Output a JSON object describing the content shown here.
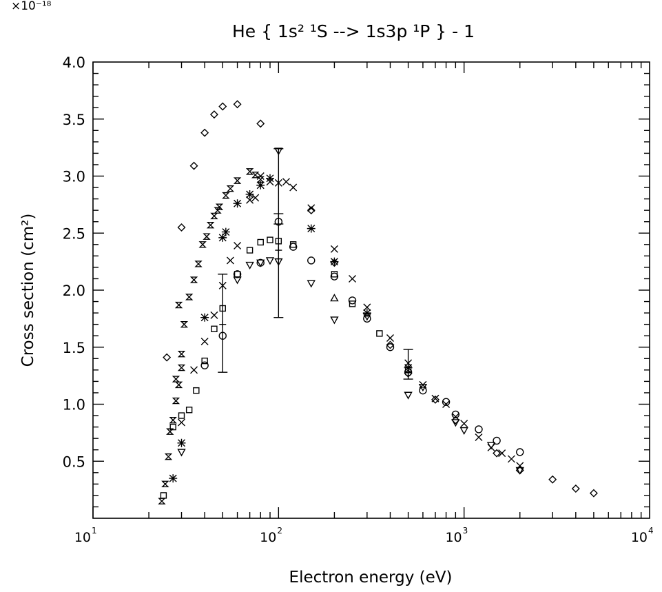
{
  "chart_data": {
    "type": "scatter",
    "title": "He { 1s² ¹S --> 1s3p ¹P } - 1",
    "scale_factor_label": "×10⁻¹⁸",
    "xlabel": "Electron energy (eV)",
    "ylabel": "Cross section (cm²)",
    "x_scale": "log",
    "xlim": [
      10,
      10000
    ],
    "ylim": [
      0,
      4.0
    ],
    "x_tick_labels": [
      {
        "value": 10,
        "base": "10",
        "exp": "1"
      },
      {
        "value": 100,
        "base": "10",
        "exp": "2"
      },
      {
        "value": 1000,
        "base": "10",
        "exp": "3"
      },
      {
        "value": 10000,
        "base": "10",
        "exp": "4"
      }
    ],
    "y_ticks": [
      0.5,
      1.0,
      1.5,
      2.0,
      2.5,
      3.0,
      3.5,
      4.0
    ],
    "y_tick_labels": [
      "0.5",
      "1.0",
      "1.5",
      "2.0",
      "2.5",
      "3.0",
      "3.5",
      "4.0"
    ],
    "grid": false,
    "legend": "none",
    "series": [
      {
        "marker": "diamond",
        "points": [
          [
            25,
            1.41
          ],
          [
            30,
            2.55
          ],
          [
            35,
            3.09
          ],
          [
            40,
            3.38
          ],
          [
            45,
            3.54
          ],
          [
            50,
            3.61
          ],
          [
            60,
            3.63
          ],
          [
            80,
            3.46
          ],
          [
            150,
            2.7
          ],
          [
            200,
            2.24
          ],
          [
            400,
            1.52
          ],
          [
            500,
            1.27
          ],
          [
            700,
            1.04
          ],
          [
            900,
            0.86
          ],
          [
            1500,
            0.57
          ],
          [
            2000,
            0.42
          ],
          [
            3000,
            0.34
          ],
          [
            4000,
            0.26
          ],
          [
            5000,
            0.22
          ]
        ]
      },
      {
        "marker": "x",
        "points": [
          [
            30,
            0.84
          ],
          [
            35,
            1.3
          ],
          [
            40,
            1.55
          ],
          [
            45,
            1.78
          ],
          [
            50,
            2.04
          ],
          [
            55,
            2.26
          ],
          [
            60,
            2.39
          ],
          [
            70,
            2.79
          ],
          [
            75,
            2.81
          ],
          [
            80,
            3.0
          ],
          [
            90,
            2.95
          ],
          [
            100,
            2.94
          ],
          [
            110,
            2.95
          ],
          [
            120,
            2.9
          ],
          [
            150,
            2.72
          ],
          [
            200,
            2.36
          ],
          [
            250,
            2.1
          ],
          [
            300,
            1.85
          ],
          [
            400,
            1.58
          ],
          [
            500,
            1.36
          ],
          [
            600,
            1.17
          ],
          [
            700,
            1.05
          ],
          [
            800,
            1.0
          ],
          [
            900,
            0.89
          ],
          [
            1000,
            0.83
          ],
          [
            1200,
            0.71
          ],
          [
            1400,
            0.62
          ],
          [
            1600,
            0.57
          ],
          [
            1800,
            0.52
          ],
          [
            2000,
            0.46
          ]
        ]
      },
      {
        "marker": "hourglass",
        "points": [
          [
            23.5,
            0.15
          ],
          [
            24.5,
            0.3
          ],
          [
            25.5,
            0.54
          ],
          [
            26,
            0.76
          ],
          [
            27,
            0.86
          ],
          [
            28,
            1.03
          ],
          [
            29,
            1.17
          ],
          [
            30,
            1.32
          ],
          [
            28,
            1.22
          ],
          [
            30,
            1.44
          ],
          [
            29,
            1.87
          ],
          [
            31,
            1.7
          ],
          [
            33,
            1.94
          ],
          [
            35,
            2.09
          ],
          [
            37,
            2.23
          ],
          [
            39,
            2.4
          ],
          [
            41,
            2.47
          ],
          [
            43,
            2.57
          ],
          [
            45,
            2.65
          ],
          [
            47,
            2.7
          ],
          [
            48,
            2.73
          ],
          [
            52,
            2.83
          ],
          [
            55,
            2.89
          ],
          [
            60,
            2.96
          ],
          [
            70,
            3.04
          ],
          [
            75,
            3.01
          ],
          [
            80,
            2.97
          ]
        ]
      },
      {
        "marker": "star",
        "points": [
          [
            27,
            0.35
          ],
          [
            30,
            0.66
          ],
          [
            40,
            1.76
          ],
          [
            50,
            2.46
          ],
          [
            52,
            2.51
          ],
          [
            60,
            2.76
          ],
          [
            70,
            2.84
          ],
          [
            80,
            2.92
          ],
          [
            90,
            2.98
          ],
          [
            150,
            2.54
          ],
          [
            200,
            2.25
          ],
          [
            300,
            1.8
          ],
          [
            500,
            1.32
          ]
        ]
      },
      {
        "marker": "square",
        "points": [
          [
            24,
            0.2
          ],
          [
            27,
            0.8
          ],
          [
            30,
            0.9
          ],
          [
            33,
            0.95
          ],
          [
            36,
            1.12
          ],
          [
            40,
            1.38
          ],
          [
            45,
            1.66
          ],
          [
            50,
            1.84
          ],
          [
            60,
            2.14
          ],
          [
            70,
            2.35
          ],
          [
            80,
            2.42
          ],
          [
            90,
            2.44
          ],
          [
            100,
            2.43
          ],
          [
            120,
            2.4
          ],
          [
            200,
            2.14
          ],
          [
            250,
            1.88
          ],
          [
            350,
            1.62
          ],
          [
            500,
            1.3
          ]
        ]
      },
      {
        "marker": "circle",
        "points": [
          [
            40,
            1.34
          ],
          [
            50,
            1.6
          ],
          [
            60,
            2.14
          ],
          [
            80,
            2.24
          ],
          [
            100,
            2.6
          ],
          [
            120,
            2.38
          ],
          [
            150,
            2.26
          ],
          [
            200,
            2.12
          ],
          [
            250,
            1.91
          ],
          [
            300,
            1.75
          ],
          [
            400,
            1.5
          ],
          [
            500,
            1.28
          ],
          [
            600,
            1.12
          ],
          [
            800,
            1.02
          ],
          [
            900,
            0.91
          ],
          [
            1200,
            0.78
          ],
          [
            1500,
            0.68
          ],
          [
            2000,
            0.58
          ]
        ]
      },
      {
        "marker": "triangle-down",
        "points": [
          [
            30,
            0.58
          ],
          [
            60,
            2.09
          ],
          [
            70,
            2.22
          ],
          [
            80,
            2.24
          ],
          [
            90,
            2.26
          ],
          [
            100,
            2.25
          ],
          [
            100,
            3.22
          ],
          [
            150,
            2.06
          ],
          [
            200,
            1.74
          ],
          [
            300,
            1.77
          ],
          [
            500,
            1.08
          ],
          [
            600,
            1.15
          ],
          [
            900,
            0.84
          ],
          [
            1000,
            0.77
          ],
          [
            1400,
            0.64
          ],
          [
            2000,
            0.42
          ]
        ]
      },
      {
        "marker": "triangle-up",
        "points": [
          [
            200,
            1.93
          ]
        ]
      },
      {
        "marker": "plus",
        "points": [
          [
            50,
            1.7
          ],
          [
            100,
            2.35
          ],
          [
            500,
            1.28
          ]
        ]
      }
    ],
    "error_bars": [
      {
        "x": 50,
        "y": 1.7,
        "ylow": 1.28,
        "yhigh": 2.14
      },
      {
        "x": 100,
        "y": 2.35,
        "ylow": 1.76,
        "yhigh": 2.67
      },
      {
        "x": 100,
        "y": 2.9,
        "ylow": 2.58,
        "yhigh": 3.24
      },
      {
        "x": 500,
        "y": 1.35,
        "ylow": 1.22,
        "yhigh": 1.48
      }
    ]
  }
}
